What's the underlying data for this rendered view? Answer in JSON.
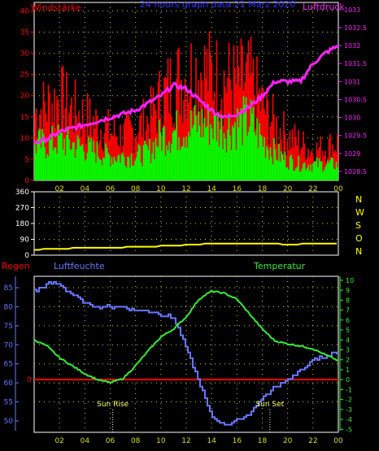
{
  "charts": {
    "wind": {
      "title": "24 hours graph data  21 März 2020",
      "left_label": "Windstärke",
      "right_label": "Luftdruck",
      "left_ticks": [
        "0",
        "5",
        "10",
        "15",
        "20",
        "25",
        "30",
        "35",
        "40"
      ],
      "right_ticks": [
        "1028.5",
        "1029",
        "1029.5",
        "1030",
        "1030.5",
        "1031",
        "1031.5",
        "1032",
        "1032.5",
        "1033"
      ]
    },
    "direction": {
      "left_ticks": [
        "0",
        "90",
        "180",
        "270",
        "360"
      ],
      "right_labels": [
        "N",
        "W",
        "S",
        "O",
        "N"
      ]
    },
    "climate": {
      "left_label": "Regen",
      "mid_label": "Luftfeuchte",
      "right_label": "Temperatur",
      "left_ticks": [
        "50",
        "55",
        "60",
        "65",
        "70",
        "75",
        "80",
        "85"
      ],
      "right_ticks": [
        "-5",
        "-4",
        "-3",
        "-2",
        "-1",
        "0",
        "1",
        "2",
        "3",
        "4",
        "5",
        "6",
        "7",
        "8",
        "9",
        "10"
      ],
      "zero_label": "0",
      "sun_rise": "Sun Rise",
      "sun_set": "Sun Set"
    },
    "x_ticks": [
      "02",
      "04",
      "06",
      "08",
      "10",
      "12",
      "14",
      "16",
      "18",
      "20",
      "22",
      "00"
    ]
  },
  "colors": {
    "gust": "#ff0000",
    "wind": "#00ff00",
    "pressure": "#ff22ff",
    "direction": "#ffff00",
    "humidity": "#6677ff",
    "temperature": "#33ee33",
    "rain": "#ff0000",
    "axis": "#ffffff",
    "grid": "#d0d000",
    "xtick": "#dddd00"
  },
  "chart_data": [
    {
      "type": "bar",
      "title": "24 hours graph data  21 März 2020",
      "x_unit": "hour",
      "x": [
        0,
        1,
        2,
        3,
        4,
        5,
        6,
        7,
        8,
        9,
        10,
        11,
        12,
        13,
        14,
        15,
        16,
        17,
        18,
        19,
        20,
        21,
        22,
        23,
        24
      ],
      "series": [
        {
          "name": "Windstärke",
          "axis": "left",
          "values": [
            9,
            9,
            10,
            9,
            8,
            7,
            6,
            6,
            6,
            7,
            11,
            12,
            13,
            14,
            14,
            13,
            14,
            15,
            10,
            7,
            5,
            4,
            4,
            4,
            4
          ]
        },
        {
          "name": "Windstärke gust",
          "axis": "left",
          "values": [
            18,
            20,
            22,
            19,
            17,
            15,
            13,
            12,
            14,
            16,
            22,
            26,
            28,
            30,
            28,
            27,
            26,
            27,
            20,
            15,
            12,
            10,
            8,
            9,
            10
          ]
        },
        {
          "name": "Luftdruck",
          "axis": "right",
          "type": "line",
          "values": [
            1029.3,
            1029.4,
            1029.6,
            1029.7,
            1029.8,
            1029.9,
            1030.0,
            1030.1,
            1030.2,
            1030.4,
            1030.6,
            1030.9,
            1030.8,
            1030.5,
            1030.2,
            1030.0,
            1030.1,
            1030.3,
            1030.6,
            1031.0,
            1031.0,
            1031.0,
            1031.5,
            1031.8,
            1032.0
          ]
        }
      ],
      "ylim_left": [
        0,
        42
      ],
      "ylim_right": [
        1028.25,
        1033.2
      ]
    },
    {
      "type": "line",
      "x_unit": "hour",
      "x": [
        0,
        2,
        4,
        6,
        8,
        10,
        12,
        14,
        16,
        18,
        20,
        22,
        24
      ],
      "series": [
        {
          "name": "direction",
          "values": [
            30,
            38,
            40,
            44,
            46,
            52,
            58,
            65,
            68,
            66,
            62,
            64,
            66
          ]
        }
      ],
      "ylim": [
        0,
        360
      ]
    },
    {
      "type": "line",
      "x_unit": "hour",
      "x": [
        0,
        1,
        2,
        3,
        4,
        5,
        6,
        7,
        8,
        9,
        10,
        11,
        12,
        13,
        14,
        15,
        16,
        17,
        18,
        19,
        20,
        21,
        22,
        23,
        24
      ],
      "series": [
        {
          "name": "Luftfeuchte",
          "axis": "left",
          "values": [
            84,
            86,
            86,
            83,
            81,
            80,
            80,
            80,
            79,
            79,
            78,
            77,
            69,
            60,
            51,
            49,
            50,
            52,
            56,
            59,
            61,
            63,
            66,
            67,
            68
          ]
        },
        {
          "name": "Temperatur",
          "axis": "right",
          "values": [
            4.0,
            3.4,
            2.2,
            1.4,
            0.6,
            0.0,
            -0.3,
            0.1,
            1.4,
            2.9,
            4.3,
            5.1,
            6.3,
            8.1,
            8.9,
            8.7,
            8.1,
            6.6,
            5.1,
            3.9,
            3.6,
            3.4,
            3.1,
            2.5,
            1.9
          ]
        },
        {
          "name": "Regen",
          "axis": "zero",
          "values": [
            0,
            0,
            0,
            0,
            0,
            0,
            0,
            0,
            0,
            0,
            0,
            0,
            0,
            0,
            0,
            0,
            0,
            0,
            0,
            0,
            0,
            0,
            0,
            0,
            0
          ]
        }
      ],
      "ylim_left": [
        47,
        88
      ],
      "ylim_right": [
        -5.3,
        10.4
      ],
      "sun_rise_hour": 6.2,
      "sun_set_hour": 18.6
    }
  ]
}
